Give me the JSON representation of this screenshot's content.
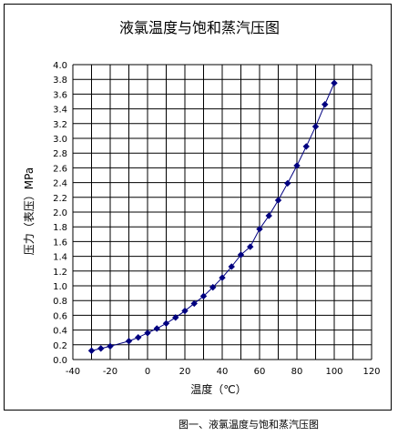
{
  "chart_data": {
    "type": "line",
    "title": "液氯温度与饱和蒸汽压图",
    "xlabel": "温度（℃）",
    "ylabel": "压力（表压）MPa",
    "xlim": [
      -40,
      120
    ],
    "ylim": [
      0,
      4.0
    ],
    "x_ticks": [
      "-40",
      "-20",
      "0",
      "20",
      "40",
      "60",
      "80",
      "100",
      "120"
    ],
    "y_ticks": [
      "0.0",
      "0.2",
      "0.4",
      "0.6",
      "0.8",
      "1.0",
      "1.2",
      "1.4",
      "1.6",
      "1.8",
      "2.0",
      "2.2",
      "2.4",
      "2.6",
      "2.8",
      "3.0",
      "3.2",
      "3.4",
      "3.6",
      "3.8",
      "4.0"
    ],
    "grid": true,
    "legend": "none",
    "series_color": "#000080",
    "x": [
      -30,
      -25,
      -20,
      -10,
      -5,
      0,
      5,
      10,
      15,
      20,
      25,
      30,
      35,
      40,
      45,
      50,
      55,
      60,
      65,
      70,
      75,
      80,
      85,
      90,
      95,
      100
    ],
    "y": [
      0.12,
      0.15,
      0.18,
      0.25,
      0.3,
      0.36,
      0.42,
      0.49,
      0.57,
      0.66,
      0.76,
      0.86,
      0.98,
      1.11,
      1.26,
      1.42,
      1.53,
      1.77,
      1.95,
      2.16,
      2.39,
      2.63,
      2.89,
      3.16,
      3.46,
      3.75
    ]
  },
  "caption": "图一、液氯温度与饱和蒸汽压图"
}
